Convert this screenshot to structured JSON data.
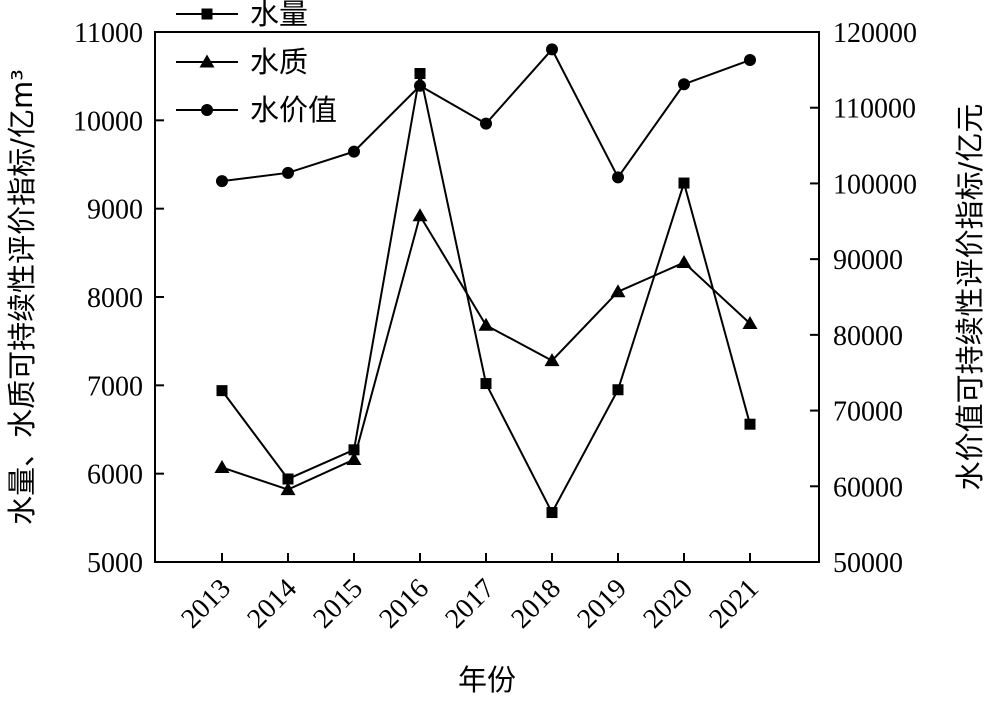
{
  "chart_data": {
    "type": "line",
    "x": [
      "2013",
      "2014",
      "2015",
      "2016",
      "2017",
      "2018",
      "2019",
      "2020",
      "2021"
    ],
    "xlabel": "年份",
    "ylabel_left": "水量、水质可持续性评价指标/亿m³",
    "ylabel_right": "水价值可持续性评价指标/亿元",
    "ylim_left": [
      5000,
      11000
    ],
    "yticks_left": [
      5000,
      6000,
      7000,
      8000,
      9000,
      10000,
      11000
    ],
    "ylim_right": [
      50000,
      120000
    ],
    "yticks_right": [
      50000,
      60000,
      70000,
      80000,
      90000,
      100000,
      110000,
      120000
    ],
    "grid": false,
    "legend_position": "top-left",
    "series": [
      {
        "name": "水量",
        "axis": "left",
        "marker": "square",
        "values": [
          6940,
          5940,
          6270,
          10530,
          7020,
          5560,
          6950,
          9290,
          6560
        ]
      },
      {
        "name": "水质",
        "axis": "left",
        "marker": "triangle",
        "values": [
          6070,
          5820,
          6160,
          8920,
          7680,
          7280,
          8060,
          8390,
          7700
        ]
      },
      {
        "name": "水价值",
        "axis": "right",
        "marker": "circle",
        "values": [
          100300,
          101400,
          104200,
          112900,
          107900,
          117700,
          100800,
          113100,
          116300
        ]
      }
    ]
  }
}
